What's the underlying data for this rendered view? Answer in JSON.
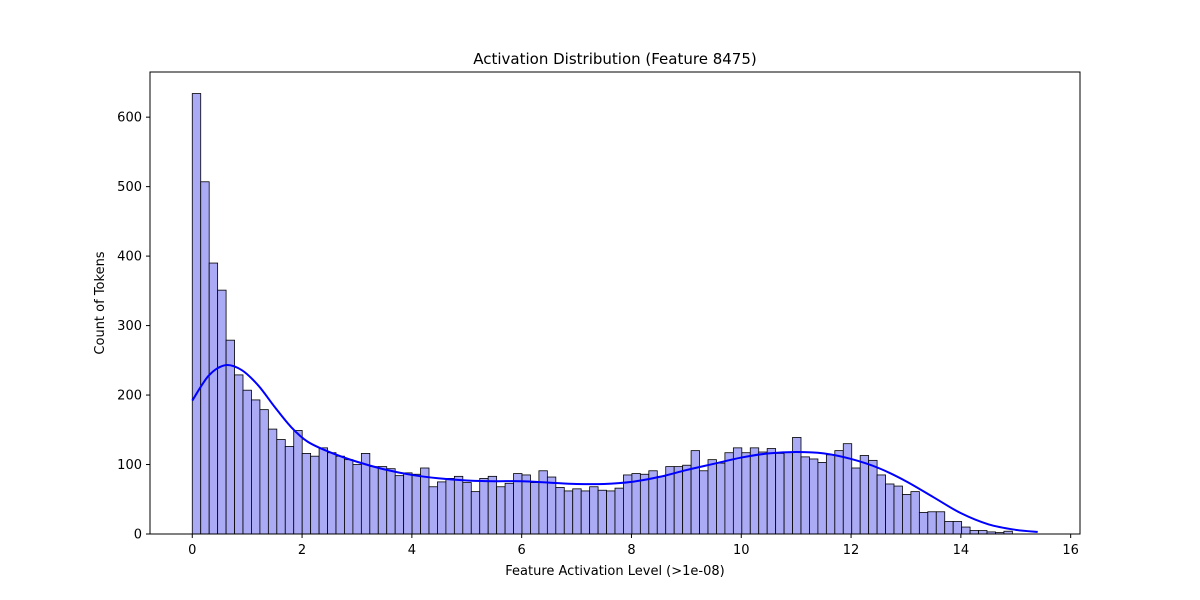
{
  "chart_data": {
    "type": "histogram",
    "title": "Activation Distribution (Feature 8475)",
    "xlabel": "Feature Activation Level (>1e-08)",
    "ylabel": "Count of Tokens",
    "xlim": [
      -0.77,
      16.17
    ],
    "ylim": [
      0,
      665
    ],
    "x_ticks": [
      0,
      2,
      4,
      6,
      8,
      10,
      12,
      14,
      16
    ],
    "y_ticks": [
      0,
      100,
      200,
      300,
      400,
      500,
      600
    ],
    "grid": false,
    "legend": "none",
    "bin_start": 0.0,
    "bin_width": 0.154,
    "values": [
      634,
      507,
      390,
      351,
      279,
      229,
      207,
      193,
      179,
      151,
      136,
      126,
      149,
      116,
      112,
      124,
      117,
      112,
      107,
      100,
      116,
      97,
      97,
      94,
      84,
      88,
      86,
      95,
      68,
      75,
      80,
      83,
      74,
      61,
      80,
      83,
      68,
      73,
      87,
      85,
      74,
      91,
      82,
      67,
      62,
      65,
      62,
      68,
      63,
      62,
      66,
      85,
      87,
      86,
      91,
      83,
      97,
      97,
      99,
      120,
      91,
      107,
      102,
      117,
      124,
      117,
      124,
      118,
      123,
      116,
      118,
      139,
      111,
      108,
      103,
      114,
      120,
      130,
      95,
      113,
      106,
      85,
      72,
      69,
      57,
      61,
      31,
      32,
      32,
      18,
      18,
      10,
      5,
      5,
      3,
      2,
      4
    ],
    "kde": {
      "x": [
        0.0,
        0.3,
        0.6,
        0.9,
        1.2,
        1.5,
        1.8,
        2.1,
        2.5,
        3.0,
        3.5,
        4.0,
        4.5,
        5.0,
        5.5,
        6.0,
        6.5,
        7.0,
        7.5,
        8.0,
        8.5,
        9.0,
        9.5,
        10.0,
        10.5,
        11.0,
        11.5,
        12.0,
        12.5,
        13.0,
        13.5,
        14.0,
        14.5,
        15.0,
        15.4
      ],
      "y": [
        192,
        228,
        243,
        236,
        214,
        183,
        154,
        133,
        118,
        104,
        93,
        85,
        80,
        77,
        76,
        76,
        74,
        72,
        72,
        75,
        82,
        92,
        101,
        110,
        116,
        118,
        116,
        108,
        95,
        76,
        53,
        30,
        14,
        6,
        3
      ]
    },
    "colors": {
      "bar_fill": "#aaaaf5",
      "bar_edge": "#000000",
      "kde_line": "#0000ff"
    }
  }
}
